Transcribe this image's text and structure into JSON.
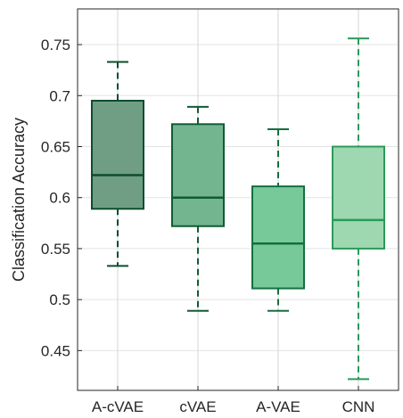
{
  "chart_data": {
    "type": "box",
    "title": "",
    "xlabel": "",
    "ylabel": "Classification Accuracy",
    "ylim": [
      0.411,
      0.785
    ],
    "yticks": [
      0.45,
      0.5,
      0.55,
      0.6,
      0.65,
      0.7,
      0.75
    ],
    "ytick_labels": [
      "0.45",
      "0.5",
      "0.55",
      "0.6",
      "0.65",
      "0.7",
      "0.75"
    ],
    "grid": true,
    "categories": [
      "A-cVAE",
      "cVAE",
      "A-VAE",
      "CNN"
    ],
    "boxes": [
      {
        "category": "A-cVAE",
        "min": 0.533,
        "q1": 0.589,
        "median": 0.622,
        "q3": 0.695,
        "max": 0.733,
        "fill": "#6f9e85",
        "edge": "#0d4d2c"
      },
      {
        "category": "cVAE",
        "min": 0.489,
        "q1": 0.572,
        "median": 0.6,
        "q3": 0.672,
        "max": 0.689,
        "fill": "#72b58f",
        "edge": "#0f5c33"
      },
      {
        "category": "A-VAE",
        "min": 0.489,
        "q1": 0.511,
        "median": 0.555,
        "q3": 0.611,
        "max": 0.667,
        "fill": "#78c99a",
        "edge": "#137040"
      },
      {
        "category": "CNN",
        "min": 0.422,
        "q1": 0.55,
        "median": 0.578,
        "q3": 0.65,
        "max": 0.756,
        "fill": "#9ed8b0",
        "edge": "#2b9a5a"
      }
    ]
  }
}
